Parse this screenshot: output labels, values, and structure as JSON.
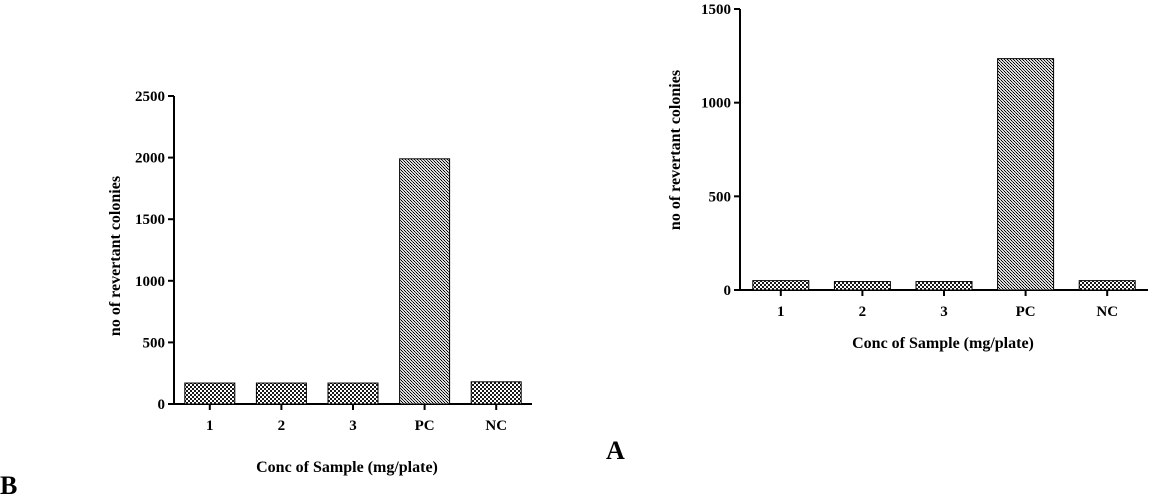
{
  "panels": [
    {
      "letter": "B",
      "chart_data": {
        "type": "bar",
        "categories": [
          "1",
          "2",
          "3",
          "PC",
          "NC"
        ],
        "values": [
          170,
          170,
          170,
          1990,
          180
        ],
        "ylim": [
          0,
          2500
        ],
        "yticks": [
          0,
          500,
          1000,
          1500,
          2000,
          2500
        ],
        "xlabel": "Conc of Sample (mg/plate)",
        "ylabel": "no of revertant colonies",
        "grid": false,
        "legend": "none",
        "bar_fill": "#b5b5b5",
        "bar_stroke": "#000000"
      }
    },
    {
      "letter": "A",
      "chart_data": {
        "type": "bar",
        "categories": [
          "1",
          "2",
          "3",
          "PC",
          "NC"
        ],
        "values": [
          50,
          45,
          45,
          1235,
          50
        ],
        "ylim": [
          0,
          1500
        ],
        "yticks": [
          0,
          500,
          1000,
          1500
        ],
        "xlabel": "Conc of Sample (mg/plate)",
        "ylabel": "no of revertant colonies",
        "grid": false,
        "legend": "none",
        "bar_fill": "#b5b5b5",
        "bar_stroke": "#000000"
      }
    }
  ]
}
